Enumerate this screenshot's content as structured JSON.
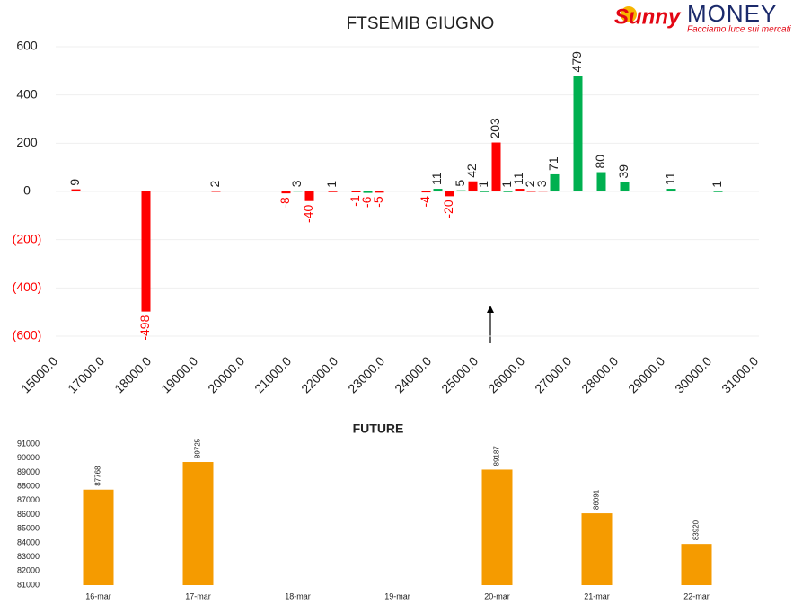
{
  "logo": {
    "brand": "Sunny",
    "name": "MONEY",
    "tagline": "Facciamo luce sui mercati"
  },
  "chart_data": [
    {
      "type": "bar",
      "title": "FTSEMIB GIUGNO",
      "categories": [
        "15000.0",
        null,
        null,
        null,
        "17000.0",
        null,
        null,
        null,
        "18000.0",
        null,
        null,
        null,
        "19000.0",
        null,
        null,
        null,
        "20000.0",
        null,
        null,
        null,
        "21000.0",
        null,
        null,
        null,
        "22000.0",
        null,
        null,
        null,
        "23000.0",
        null,
        null,
        null,
        "24000.0",
        null,
        null,
        null,
        "25000.0",
        null,
        null,
        null,
        "26000.0",
        null,
        null,
        null,
        "27000.0",
        null,
        null,
        null,
        "28000.0",
        null,
        null,
        null,
        "29000.0",
        null,
        null,
        null,
        "30000.0",
        null,
        null,
        null,
        "31000.0"
      ],
      "values": [
        null,
        null,
        9,
        null,
        null,
        null,
        null,
        null,
        -498,
        null,
        null,
        null,
        null,
        null,
        2,
        null,
        null,
        null,
        null,
        null,
        -8,
        3,
        -40,
        null,
        1,
        null,
        -1,
        -6,
        -5,
        null,
        null,
        null,
        -4,
        11,
        -20,
        5,
        42,
        1,
        203,
        1,
        11,
        2,
        3,
        71,
        null,
        479,
        null,
        80,
        null,
        39,
        null,
        null,
        null,
        11,
        null,
        null,
        null,
        1,
        null,
        null,
        null
      ],
      "colors": [
        null,
        null,
        "#ff0000",
        null,
        null,
        null,
        null,
        null,
        "#ff0000",
        null,
        null,
        null,
        null,
        null,
        "#ff0000",
        null,
        null,
        null,
        null,
        null,
        "#ff0000",
        "#00b050",
        "#ff0000",
        null,
        "#ff0000",
        null,
        "#ff0000",
        "#00b050",
        "#ff0000",
        null,
        null,
        null,
        "#ff0000",
        "#00b050",
        "#ff0000",
        "#00b050",
        "#ff0000",
        "#00b050",
        "#ff0000",
        "#00b050",
        "#ff0000",
        "#ff0000",
        "#ff0000",
        "#00b050",
        null,
        "#00b050",
        null,
        "#00b050",
        null,
        "#00b050",
        null,
        null,
        null,
        "#00b050",
        null,
        null,
        null,
        "#00b050",
        null,
        null,
        null
      ],
      "ylim": [
        -600,
        600
      ],
      "yticks": [
        {
          "value": -600,
          "label": "(600)"
        },
        {
          "value": -400,
          "label": "(400)"
        },
        {
          "value": -200,
          "label": "(200)"
        },
        0,
        200,
        400,
        600
      ],
      "grid": true
    },
    {
      "type": "bar",
      "title": "FUTURE",
      "categories": [
        "16-mar",
        "17-mar",
        "18-mar",
        "19-mar",
        "20-mar",
        "21-mar",
        "22-mar"
      ],
      "values": [
        87768,
        89725,
        null,
        null,
        89187,
        86091,
        83920
      ],
      "color": "#f59b00",
      "ylim": [
        81000,
        91000
      ],
      "yticks": [
        81000,
        82000,
        83000,
        84000,
        85000,
        86000,
        87000,
        88000,
        89000,
        90000,
        91000
      ],
      "grid": false
    }
  ]
}
